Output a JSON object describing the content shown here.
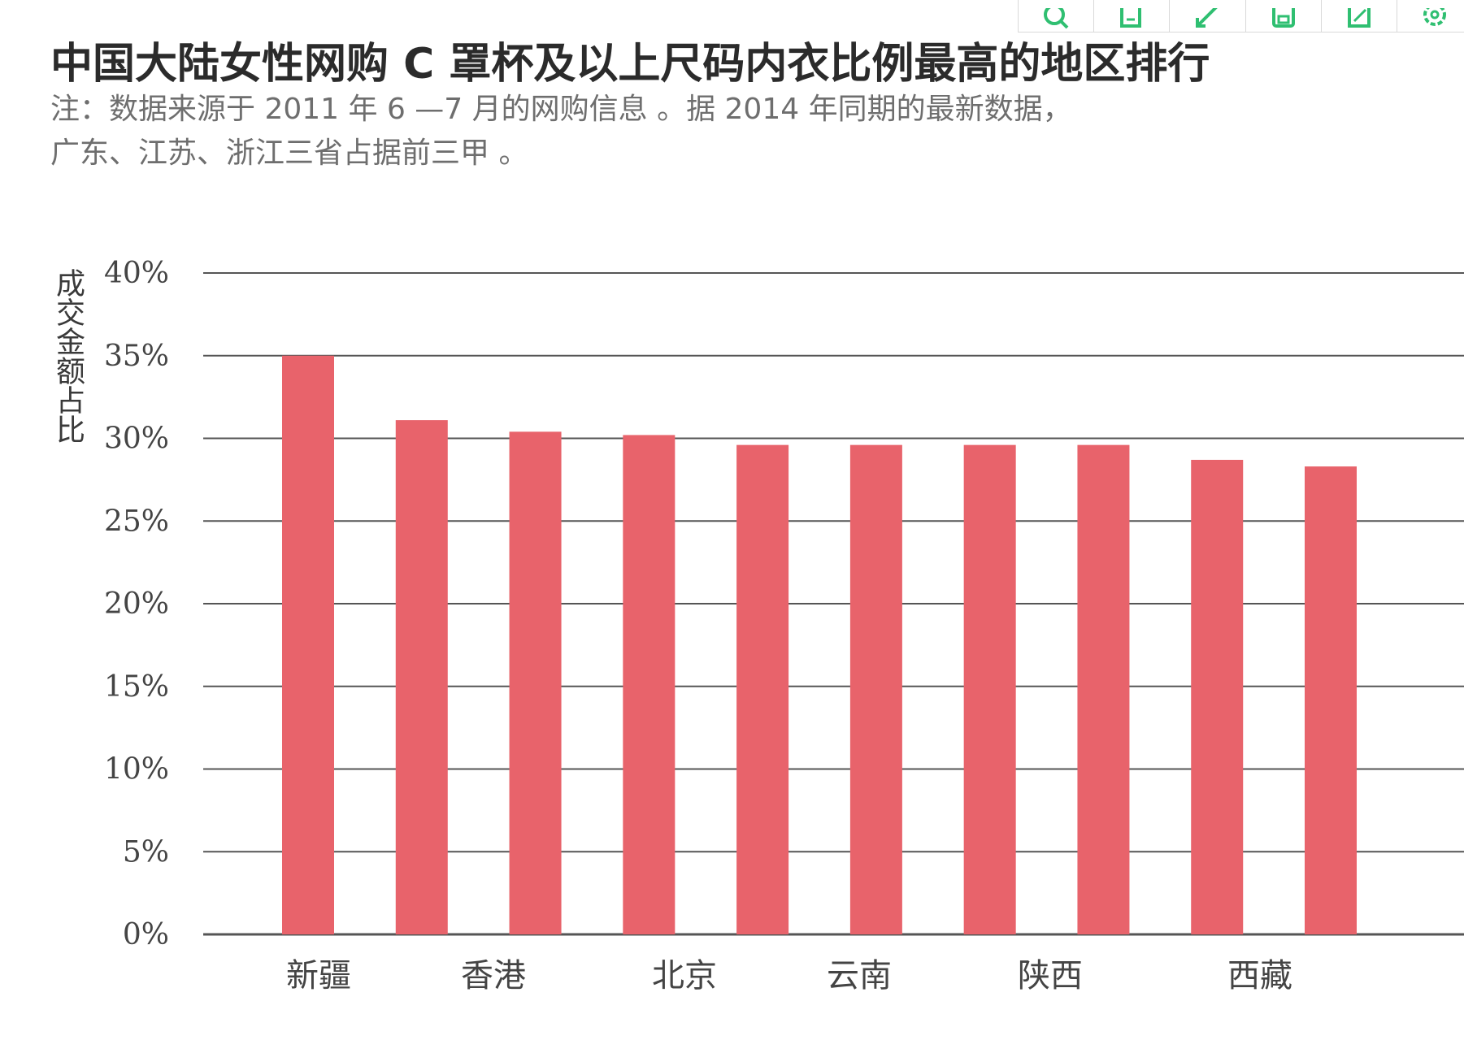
{
  "toolbar": {
    "icons": [
      "search-icon",
      "copy-icon",
      "expand-icon",
      "save-icon",
      "share-icon",
      "settings-icon"
    ]
  },
  "title": "中国大陆女性网购 C 罩杯及以上尺码内衣比例最高的地区排行",
  "note": {
    "line1": "注：数据来源于 2011 年 6 —7 月的网购信息 。据 2014 年同期的最新数据，",
    "line2": "广东、江苏、浙江三省占据前三甲 。"
  },
  "colors": {
    "bar": "#e8636b",
    "grid": "#555555",
    "axis": "#444444"
  },
  "chart_data": {
    "type": "bar",
    "ylabel": "成交金额占比",
    "ylim": [
      0,
      40
    ],
    "yticks": [
      0,
      5,
      10,
      15,
      20,
      25,
      30,
      35,
      40
    ],
    "ytick_labels": [
      "0%",
      "5%",
      "10%",
      "15%",
      "20%",
      "25%",
      "30%",
      "35%",
      "40%"
    ],
    "grid": true,
    "bars": [
      {
        "label": "新疆",
        "value": 35.0
      },
      {
        "label": "",
        "value": 31.1
      },
      {
        "label": "香港",
        "value": 30.4
      },
      {
        "label": "",
        "value": 30.2
      },
      {
        "label": "北京",
        "value": 29.6
      },
      {
        "label": "",
        "value": 29.6
      },
      {
        "label": "云南",
        "value": 29.6
      },
      {
        "label": "",
        "value": 29.6
      },
      {
        "label": "陕西",
        "value": 28.7
      },
      {
        "label": "",
        "value": 28.3
      }
    ],
    "category_labels": [
      "新疆",
      "香港",
      "北京",
      "云南",
      "陕西",
      "西藏"
    ]
  }
}
